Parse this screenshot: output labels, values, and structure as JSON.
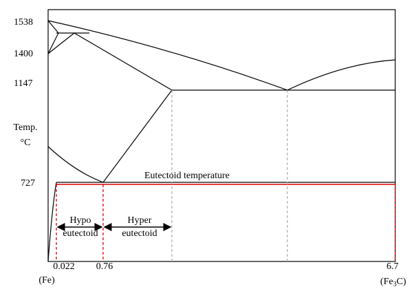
{
  "y_axis": {
    "label_line1": "Temp.",
    "label_line2": "°C",
    "ticks": [
      "1538",
      "1400",
      "1147",
      "727"
    ]
  },
  "x_axis": {
    "ticks": [
      "0.022",
      "0.76",
      "6.7"
    ],
    "left_label": "(Fe)",
    "right_label": {
      "start": "(Fe",
      "sub": "3",
      "end": "C)"
    }
  },
  "annotations": {
    "eutectoid_line": "Eutectoid temperature",
    "hypo": {
      "line1": "Hypo",
      "line2": "eutectoid"
    },
    "hyper": {
      "line1": "Hyper",
      "line2": "eutectoid"
    }
  }
}
